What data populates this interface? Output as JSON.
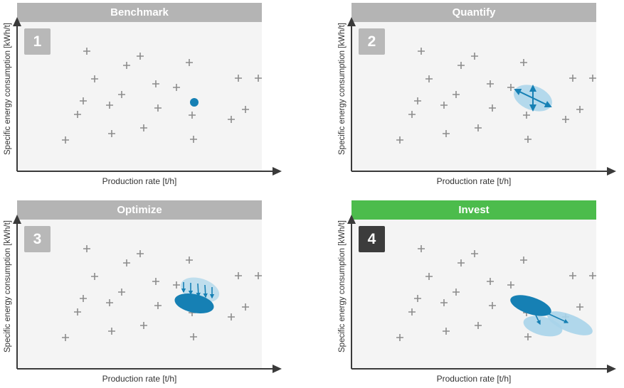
{
  "panels": [
    {
      "title": "Benchmark",
      "number": "1",
      "ylabel": "Specific energy consumption [kWh/t]",
      "xlabel": "Production rate [t/h]"
    },
    {
      "title": "Quantify",
      "number": "2",
      "ylabel": "Specific energy consumption [kWh/t]",
      "xlabel": "Production rate [t/h]"
    },
    {
      "title": "Optimize",
      "number": "3",
      "ylabel": "Specific energy consumption [kWh/t]",
      "xlabel": "Production rate [t/h]"
    },
    {
      "title": "Invest",
      "number": "4",
      "ylabel": "Specific energy consumption [kWh/t]",
      "xlabel": "Production rate [t/h]"
    }
  ],
  "colors": {
    "header_inactive": "#b4b4b4",
    "header_active": "#4cbc4c",
    "badge_inactive": "#b8b8b8",
    "badge_active": "#3c3c3c",
    "marker": "#8c8c8c",
    "accent_dark": "#1680b4",
    "accent_light": "#a8d4ea"
  }
}
